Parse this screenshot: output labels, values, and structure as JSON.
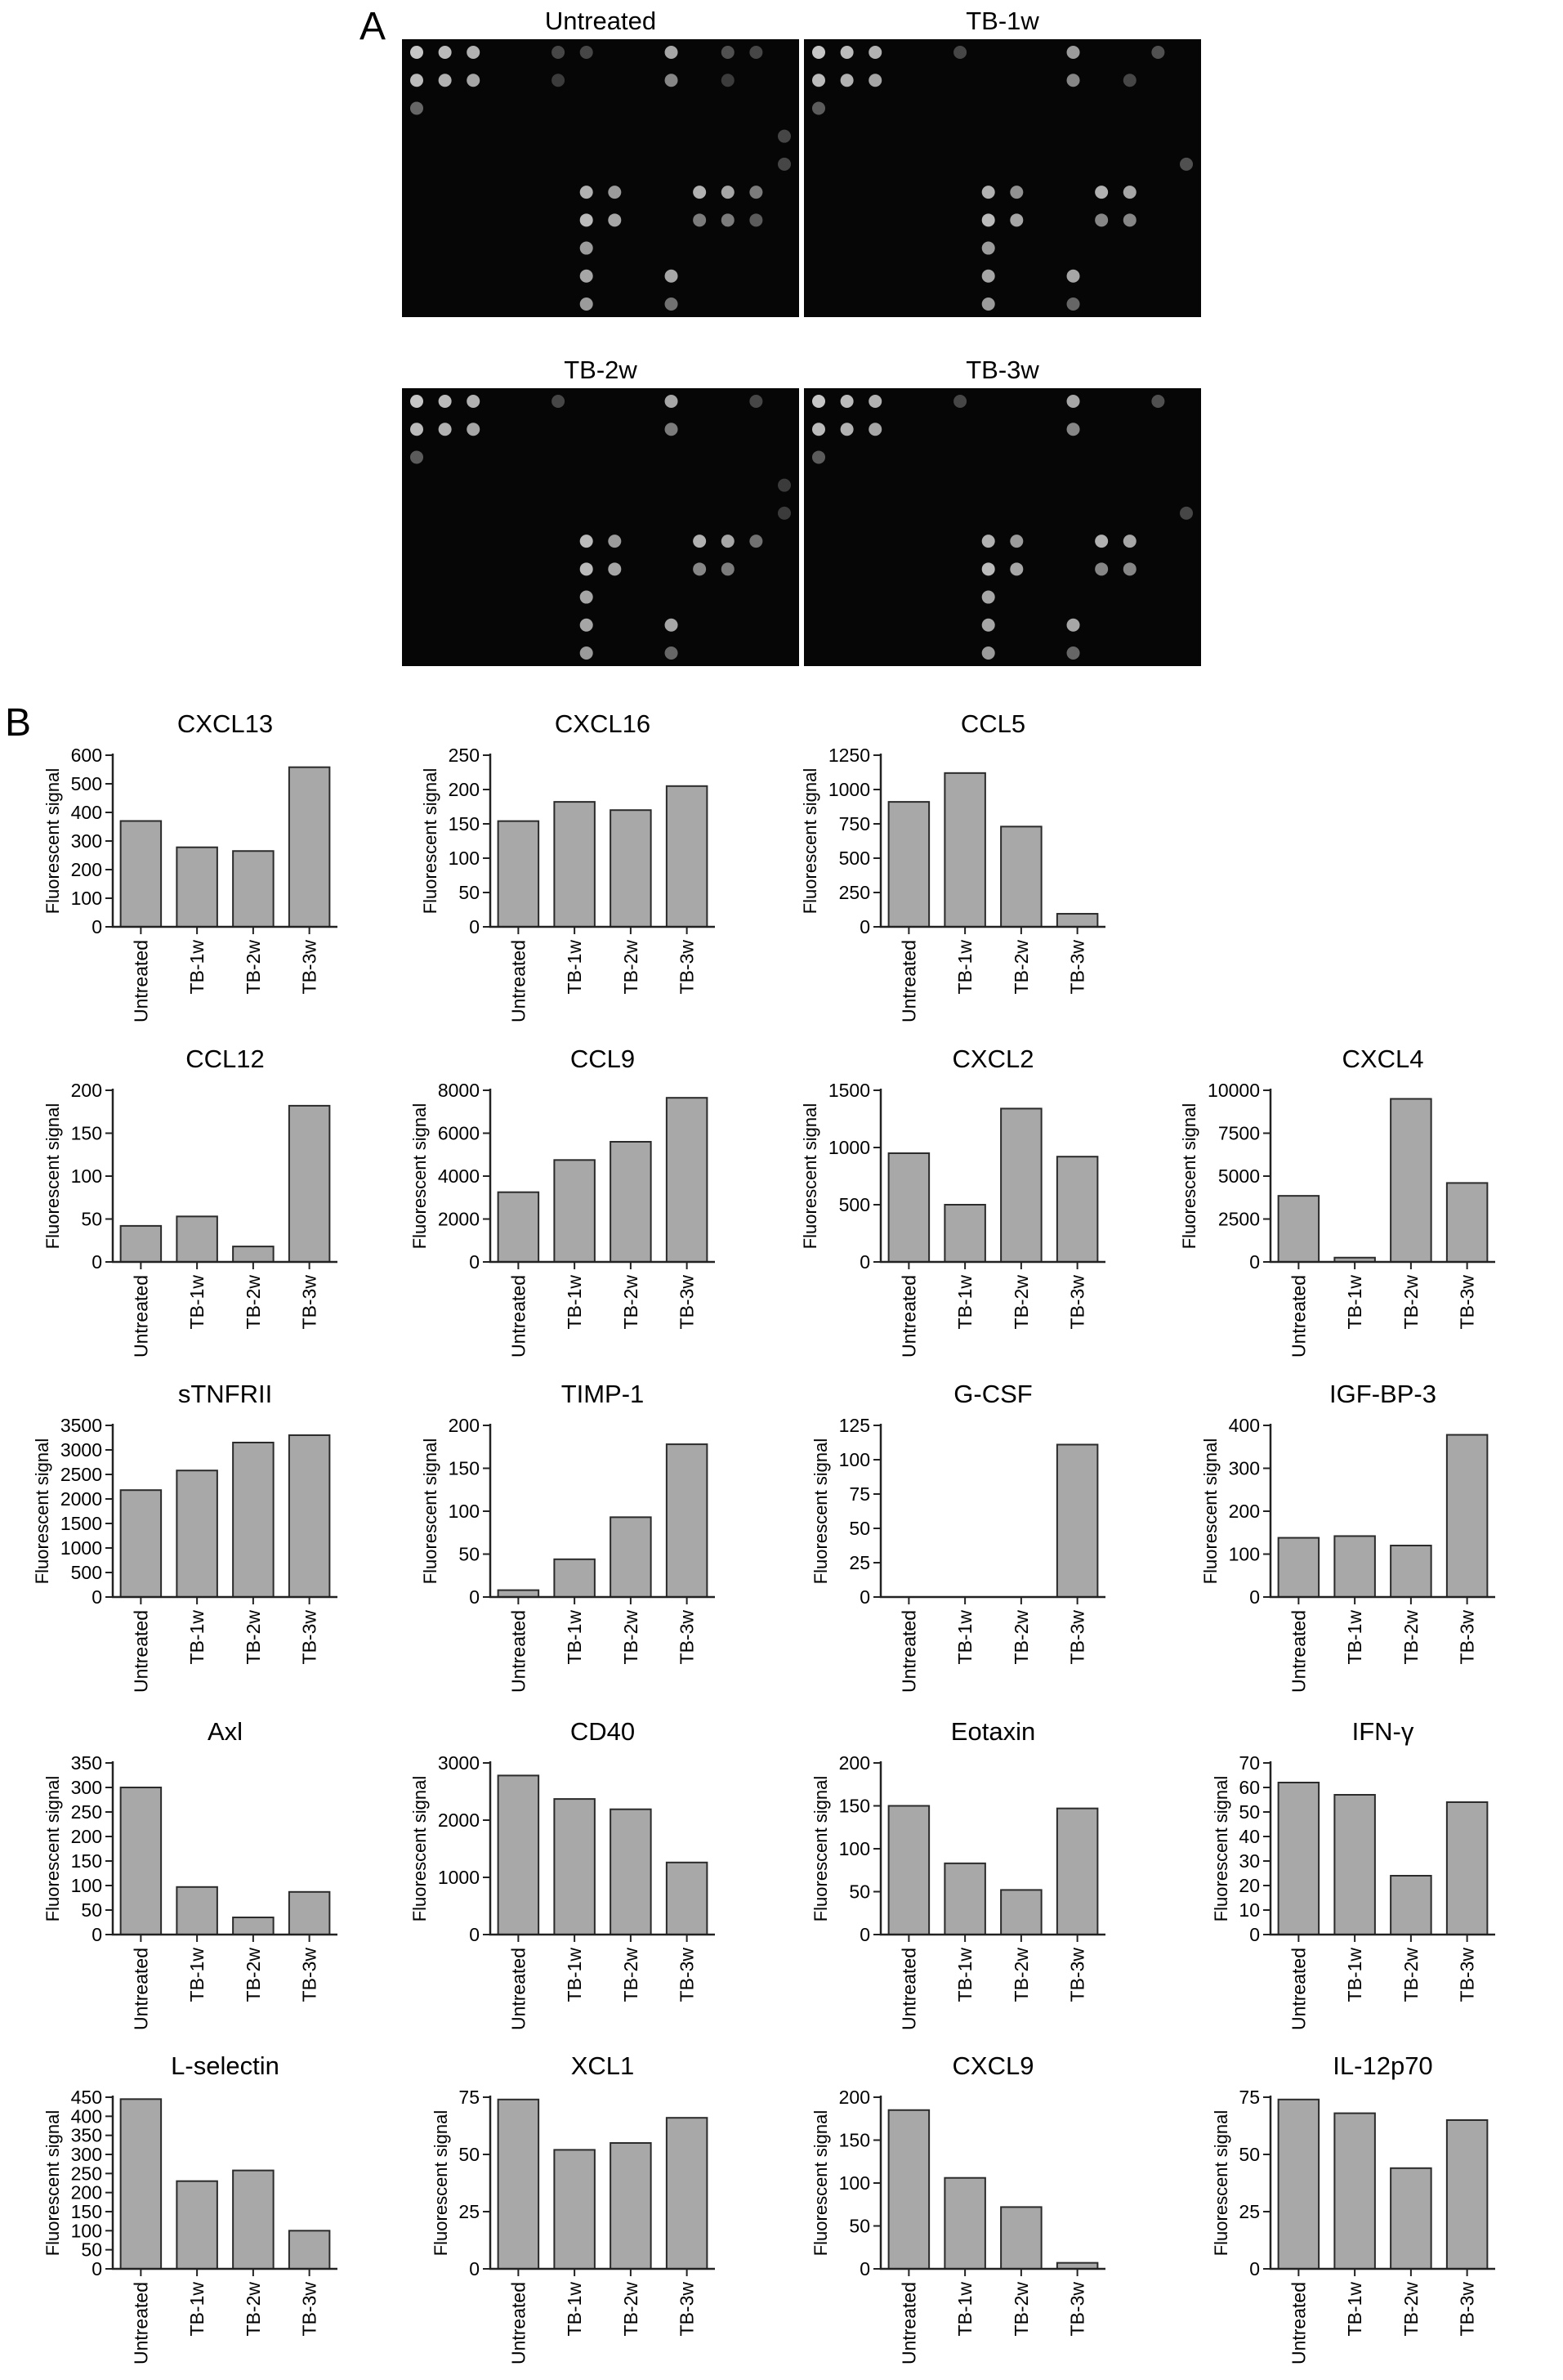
{
  "panels": {
    "a_label": "A",
    "b_label": "B"
  },
  "blots": [
    {
      "title": "Untreated"
    },
    {
      "title": "TB-1w"
    },
    {
      "title": "TB-2w"
    },
    {
      "title": "TB-3w"
    }
  ],
  "blot_rows": 10,
  "blot_cols": 14,
  "blot_dots": [
    [
      [
        0,
        0,
        0.9
      ],
      [
        0,
        1,
        0.85
      ],
      [
        0,
        2,
        0.8
      ],
      [
        0,
        5,
        0.3
      ],
      [
        0,
        6,
        0.3
      ],
      [
        0,
        9,
        0.75
      ],
      [
        0,
        11,
        0.35
      ],
      [
        0,
        12,
        0.3
      ],
      [
        1,
        0,
        0.85
      ],
      [
        1,
        1,
        0.8
      ],
      [
        1,
        2,
        0.75
      ],
      [
        1,
        5,
        0.25
      ],
      [
        1,
        9,
        0.6
      ],
      [
        1,
        11,
        0.25
      ],
      [
        2,
        0,
        0.45
      ],
      [
        3,
        13,
        0.3
      ],
      [
        4,
        13,
        0.3
      ],
      [
        5,
        6,
        0.8
      ],
      [
        5,
        7,
        0.7
      ],
      [
        5,
        10,
        0.8
      ],
      [
        5,
        11,
        0.75
      ],
      [
        5,
        12,
        0.55
      ],
      [
        6,
        6,
        0.85
      ],
      [
        6,
        7,
        0.75
      ],
      [
        6,
        10,
        0.55
      ],
      [
        6,
        11,
        0.55
      ],
      [
        6,
        12,
        0.4
      ],
      [
        7,
        6,
        0.7
      ],
      [
        8,
        6,
        0.75
      ],
      [
        8,
        9,
        0.75
      ],
      [
        9,
        6,
        0.7
      ],
      [
        9,
        9,
        0.5
      ]
    ],
    [
      [
        0,
        0,
        0.9
      ],
      [
        0,
        1,
        0.85
      ],
      [
        0,
        2,
        0.8
      ],
      [
        0,
        5,
        0.3
      ],
      [
        0,
        9,
        0.7
      ],
      [
        0,
        12,
        0.35
      ],
      [
        1,
        0,
        0.85
      ],
      [
        1,
        1,
        0.8
      ],
      [
        1,
        2,
        0.75
      ],
      [
        1,
        9,
        0.6
      ],
      [
        1,
        11,
        0.3
      ],
      [
        2,
        0,
        0.4
      ],
      [
        4,
        13,
        0.35
      ],
      [
        5,
        6,
        0.8
      ],
      [
        5,
        7,
        0.65
      ],
      [
        5,
        10,
        0.8
      ],
      [
        5,
        11,
        0.75
      ],
      [
        6,
        6,
        0.85
      ],
      [
        6,
        7,
        0.75
      ],
      [
        6,
        10,
        0.6
      ],
      [
        6,
        11,
        0.6
      ],
      [
        7,
        6,
        0.7
      ],
      [
        8,
        6,
        0.75
      ],
      [
        8,
        9,
        0.75
      ],
      [
        9,
        6,
        0.7
      ],
      [
        9,
        9,
        0.45
      ]
    ],
    [
      [
        0,
        0,
        0.9
      ],
      [
        0,
        1,
        0.85
      ],
      [
        0,
        2,
        0.8
      ],
      [
        0,
        5,
        0.3
      ],
      [
        0,
        9,
        0.75
      ],
      [
        0,
        12,
        0.3
      ],
      [
        1,
        0,
        0.85
      ],
      [
        1,
        1,
        0.8
      ],
      [
        1,
        2,
        0.75
      ],
      [
        1,
        9,
        0.55
      ],
      [
        2,
        0,
        0.4
      ],
      [
        3,
        13,
        0.25
      ],
      [
        4,
        13,
        0.25
      ],
      [
        5,
        6,
        0.85
      ],
      [
        5,
        7,
        0.7
      ],
      [
        5,
        10,
        0.8
      ],
      [
        5,
        11,
        0.75
      ],
      [
        5,
        12,
        0.5
      ],
      [
        6,
        6,
        0.85
      ],
      [
        6,
        7,
        0.75
      ],
      [
        6,
        10,
        0.6
      ],
      [
        6,
        11,
        0.55
      ],
      [
        7,
        6,
        0.75
      ],
      [
        8,
        6,
        0.75
      ],
      [
        8,
        9,
        0.75
      ],
      [
        9,
        6,
        0.7
      ],
      [
        9,
        9,
        0.45
      ]
    ],
    [
      [
        0,
        0,
        0.9
      ],
      [
        0,
        1,
        0.85
      ],
      [
        0,
        2,
        0.8
      ],
      [
        0,
        5,
        0.3
      ],
      [
        0,
        9,
        0.75
      ],
      [
        0,
        12,
        0.35
      ],
      [
        1,
        0,
        0.85
      ],
      [
        1,
        1,
        0.8
      ],
      [
        1,
        2,
        0.75
      ],
      [
        1,
        9,
        0.6
      ],
      [
        2,
        0,
        0.4
      ],
      [
        4,
        13,
        0.3
      ],
      [
        5,
        6,
        0.8
      ],
      [
        5,
        7,
        0.7
      ],
      [
        5,
        10,
        0.8
      ],
      [
        5,
        11,
        0.75
      ],
      [
        6,
        6,
        0.85
      ],
      [
        6,
        7,
        0.75
      ],
      [
        6,
        10,
        0.6
      ],
      [
        6,
        11,
        0.6
      ],
      [
        7,
        6,
        0.75
      ],
      [
        8,
        6,
        0.75
      ],
      [
        8,
        9,
        0.75
      ],
      [
        9,
        6,
        0.7
      ],
      [
        9,
        9,
        0.45
      ]
    ]
  ],
  "colors": {
    "bar_fill": "#a8a8a8",
    "bar_stroke": "#2b2b2b",
    "blot_bg": "#060606",
    "spot": "#dcdcdc"
  },
  "chart_data": [
    {
      "type": "bar",
      "title": "CXCL13",
      "ylabel": "Fluorescent signal",
      "categories": [
        "Untreated",
        "TB-1w",
        "TB-2w",
        "TB-3w"
      ],
      "values": [
        370,
        278,
        265,
        558
      ],
      "ylim": [
        0,
        600
      ],
      "yticks": [
        0,
        100,
        200,
        300,
        400,
        500,
        600
      ],
      "grid": false,
      "legend": "none"
    },
    {
      "type": "bar",
      "title": "CXCL16",
      "ylabel": "Fluorescent signal",
      "categories": [
        "Untreated",
        "TB-1w",
        "TB-2w",
        "TB-3w"
      ],
      "values": [
        154,
        182,
        170,
        205
      ],
      "ylim": [
        0,
        250
      ],
      "yticks": [
        0,
        50,
        100,
        150,
        200,
        250
      ],
      "grid": false,
      "legend": "none"
    },
    {
      "type": "bar",
      "title": "CCL5",
      "ylabel": "Fluorescent signal",
      "categories": [
        "Untreated",
        "TB-1w",
        "TB-2w",
        "TB-3w"
      ],
      "values": [
        910,
        1120,
        730,
        95
      ],
      "ylim": [
        0,
        1250
      ],
      "yticks": [
        0,
        250,
        500,
        750,
        1000,
        1250
      ],
      "grid": false,
      "legend": "none"
    },
    {
      "type": "bar",
      "title": "CCL12",
      "ylabel": "Fluorescent signal",
      "categories": [
        "Untreated",
        "TB-1w",
        "TB-2w",
        "TB-3w"
      ],
      "values": [
        42,
        53,
        18,
        182
      ],
      "ylim": [
        0,
        200
      ],
      "yticks": [
        0,
        50,
        100,
        150,
        200
      ],
      "grid": false,
      "legend": "none"
    },
    {
      "type": "bar",
      "title": "CCL9",
      "ylabel": "Fluorescent signal",
      "categories": [
        "Untreated",
        "TB-1w",
        "TB-2w",
        "TB-3w"
      ],
      "values": [
        3250,
        4750,
        5600,
        7650
      ],
      "ylim": [
        0,
        8000
      ],
      "yticks": [
        0,
        2000,
        4000,
        6000,
        8000
      ],
      "grid": false,
      "legend": "none"
    },
    {
      "type": "bar",
      "title": "CXCL2",
      "ylabel": "Fluorescent signal",
      "categories": [
        "Untreated",
        "TB-1w",
        "TB-2w",
        "TB-3w"
      ],
      "values": [
        950,
        500,
        1340,
        920
      ],
      "ylim": [
        0,
        1500
      ],
      "yticks": [
        0,
        500,
        1000,
        1500
      ],
      "grid": false,
      "legend": "none"
    },
    {
      "type": "bar",
      "title": "CXCL4",
      "ylabel": "Fluorescent signal",
      "categories": [
        "Untreated",
        "TB-1w",
        "TB-2w",
        "TB-3w"
      ],
      "values": [
        3850,
        250,
        9500,
        4600
      ],
      "ylim": [
        0,
        10000
      ],
      "yticks": [
        0,
        2500,
        5000,
        7500,
        10000
      ],
      "grid": false,
      "legend": "none"
    },
    {
      "type": "bar",
      "title": "sTNFRII",
      "ylabel": "Fluorescent signal",
      "categories": [
        "Untreated",
        "TB-1w",
        "TB-2w",
        "TB-3w"
      ],
      "values": [
        2180,
        2580,
        3150,
        3300
      ],
      "ylim": [
        0,
        3500
      ],
      "yticks": [
        0,
        500,
        1000,
        1500,
        2000,
        2500,
        3000,
        3500
      ],
      "grid": false,
      "legend": "none"
    },
    {
      "type": "bar",
      "title": "TIMP-1",
      "ylabel": "Fluorescent signal",
      "categories": [
        "Untreated",
        "TB-1w",
        "TB-2w",
        "TB-3w"
      ],
      "values": [
        8,
        44,
        93,
        178
      ],
      "ylim": [
        0,
        200
      ],
      "yticks": [
        0,
        50,
        100,
        150,
        200
      ],
      "grid": false,
      "legend": "none"
    },
    {
      "type": "bar",
      "title": "G-CSF",
      "ylabel": "Fluorescent signal",
      "categories": [
        "Untreated",
        "TB-1w",
        "TB-2w",
        "TB-3w"
      ],
      "values": [
        0,
        0,
        0,
        111
      ],
      "ylim": [
        0,
        125
      ],
      "yticks": [
        0,
        25,
        50,
        75,
        100,
        125
      ],
      "grid": false,
      "legend": "none"
    },
    {
      "type": "bar",
      "title": "IGF-BP-3",
      "ylabel": "Fluorescent signal",
      "categories": [
        "Untreated",
        "TB-1w",
        "TB-2w",
        "TB-3w"
      ],
      "values": [
        138,
        142,
        120,
        378
      ],
      "ylim": [
        0,
        400
      ],
      "yticks": [
        0,
        100,
        200,
        300,
        400
      ],
      "grid": false,
      "legend": "none"
    },
    {
      "type": "bar",
      "title": "Axl",
      "ylabel": "Fluorescent signal",
      "categories": [
        "Untreated",
        "TB-1w",
        "TB-2w",
        "TB-3w"
      ],
      "values": [
        300,
        97,
        35,
        87
      ],
      "ylim": [
        0,
        350
      ],
      "yticks": [
        0,
        50,
        100,
        150,
        200,
        250,
        300,
        350
      ],
      "grid": false,
      "legend": "none"
    },
    {
      "type": "bar",
      "title": "CD40",
      "ylabel": "Fluorescent signal",
      "categories": [
        "Untreated",
        "TB-1w",
        "TB-2w",
        "TB-3w"
      ],
      "values": [
        2780,
        2370,
        2190,
        1260
      ],
      "ylim": [
        0,
        3000
      ],
      "yticks": [
        0,
        1000,
        2000,
        3000
      ],
      "grid": false,
      "legend": "none"
    },
    {
      "type": "bar",
      "title": "Eotaxin",
      "ylabel": "Fluorescent signal",
      "categories": [
        "Untreated",
        "TB-1w",
        "TB-2w",
        "TB-3w"
      ],
      "values": [
        150,
        83,
        52,
        147
      ],
      "ylim": [
        0,
        200
      ],
      "yticks": [
        0,
        50,
        100,
        150,
        200
      ],
      "grid": false,
      "legend": "none"
    },
    {
      "type": "bar",
      "title": "IFN-γ",
      "ylabel": "Fluorescent signal",
      "categories": [
        "Untreated",
        "TB-1w",
        "TB-2w",
        "TB-3w"
      ],
      "values": [
        62,
        57,
        24,
        54
      ],
      "ylim": [
        0,
        70
      ],
      "yticks": [
        0,
        10,
        20,
        30,
        40,
        50,
        60,
        70
      ],
      "grid": false,
      "legend": "none"
    },
    {
      "type": "bar",
      "title": "L-selectin",
      "ylabel": "Fluorescent signal",
      "categories": [
        "Untreated",
        "TB-1w",
        "TB-2w",
        "TB-3w"
      ],
      "values": [
        445,
        230,
        258,
        100
      ],
      "ylim": [
        0,
        450
      ],
      "yticks": [
        0,
        50,
        100,
        150,
        200,
        250,
        300,
        350,
        400,
        450
      ],
      "grid": false,
      "legend": "none"
    },
    {
      "type": "bar",
      "title": "XCL1",
      "ylabel": "Fluorescent signal",
      "categories": [
        "Untreated",
        "TB-1w",
        "TB-2w",
        "TB-3w"
      ],
      "values": [
        74,
        52,
        55,
        66
      ],
      "ylim": [
        0,
        75
      ],
      "yticks": [
        0,
        25,
        50,
        75
      ],
      "grid": false,
      "legend": "none"
    },
    {
      "type": "bar",
      "title": "CXCL9",
      "ylabel": "Fluorescent signal",
      "categories": [
        "Untreated",
        "TB-1w",
        "TB-2w",
        "TB-3w"
      ],
      "values": [
        185,
        106,
        72,
        7
      ],
      "ylim": [
        0,
        200
      ],
      "yticks": [
        0,
        50,
        100,
        150,
        200
      ],
      "grid": false,
      "legend": "none"
    },
    {
      "type": "bar",
      "title": "IL-12p70",
      "ylabel": "Fluorescent signal",
      "categories": [
        "Untreated",
        "TB-1w",
        "TB-2w",
        "TB-3w"
      ],
      "values": [
        74,
        68,
        44,
        65
      ],
      "ylim": [
        0,
        75
      ],
      "yticks": [
        0,
        25,
        50,
        75
      ],
      "grid": false,
      "legend": "none"
    }
  ]
}
